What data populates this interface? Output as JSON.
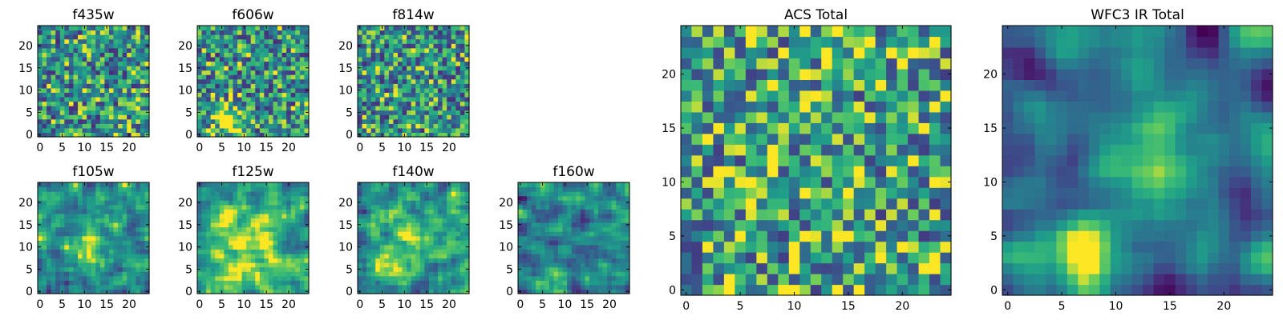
{
  "chart_data": [
    {
      "type": "heatmap",
      "title": "f435w",
      "seed": 11,
      "smooth": 0,
      "bias": 0.0,
      "hotspot": null,
      "xticks": [
        0,
        5,
        10,
        15,
        20
      ],
      "yticks": [
        0,
        5,
        10,
        15,
        20
      ],
      "xlim": [
        -0.5,
        24.5
      ],
      "ylim": [
        -0.5,
        24.5
      ],
      "colormap": "viridis"
    },
    {
      "type": "heatmap",
      "title": "f606w",
      "seed": 23,
      "smooth": 0,
      "bias": 0.0,
      "hotspot": [
        7,
        3,
        0.55,
        2.5
      ],
      "xticks": [
        0,
        5,
        10,
        15,
        20
      ],
      "yticks": [
        0,
        5,
        10,
        15,
        20
      ],
      "xlim": [
        -0.5,
        24.5
      ],
      "ylim": [
        -0.5,
        24.5
      ],
      "colormap": "viridis"
    },
    {
      "type": "heatmap",
      "title": "f814w",
      "seed": 37,
      "smooth": 0,
      "bias": 0.0,
      "hotspot": null,
      "xticks": [
        0,
        5,
        10,
        15,
        20
      ],
      "yticks": [
        0,
        5,
        10,
        15,
        20
      ],
      "xlim": [
        -0.5,
        24.5
      ],
      "ylim": [
        -0.5,
        24.5
      ],
      "colormap": "viridis"
    },
    {
      "type": "heatmap",
      "title": "f105w",
      "seed": 41,
      "smooth": 1,
      "bias": 0.0,
      "hotspot": [
        11,
        11,
        0.35,
        4
      ],
      "xticks": [
        0,
        5,
        10,
        15,
        20
      ],
      "yticks": [
        0,
        5,
        10,
        15,
        20
      ],
      "xlim": [
        -0.5,
        24.5
      ],
      "ylim": [
        -0.5,
        24.5
      ],
      "colormap": "viridis"
    },
    {
      "type": "heatmap",
      "title": "f125w",
      "seed": 53,
      "smooth": 1,
      "bias": 0.08,
      "hotspot": [
        10,
        12,
        0.25,
        5
      ],
      "xticks": [
        0,
        5,
        10,
        15,
        20
      ],
      "yticks": [
        0,
        5,
        10,
        15,
        20
      ],
      "xlim": [
        -0.5,
        24.5
      ],
      "ylim": [
        -0.5,
        24.5
      ],
      "colormap": "viridis"
    },
    {
      "type": "heatmap",
      "title": "f140w",
      "seed": 67,
      "smooth": 1,
      "bias": 0.0,
      "hotspot": [
        12,
        10,
        0.25,
        5
      ],
      "xticks": [
        0,
        5,
        10,
        15,
        20
      ],
      "yticks": [
        0,
        5,
        10,
        15,
        20
      ],
      "xlim": [
        -0.5,
        24.5
      ],
      "ylim": [
        -0.5,
        24.5
      ],
      "colormap": "viridis"
    },
    {
      "type": "heatmap",
      "title": "f160w",
      "seed": 79,
      "smooth": 1,
      "bias": -0.1,
      "hotspot": [
        6,
        2,
        0.45,
        2
      ],
      "xticks": [
        0,
        5,
        10,
        15,
        20
      ],
      "yticks": [
        0,
        5,
        10,
        15,
        20
      ],
      "xlim": [
        -0.5,
        24.5
      ],
      "ylim": [
        -0.5,
        24.5
      ],
      "colormap": "viridis"
    },
    {
      "type": "heatmap",
      "title": "ACS Total",
      "seed": 97,
      "smooth": 0,
      "bias": 0.05,
      "hotspot": null,
      "xticks": [
        0,
        5,
        10,
        15,
        20
      ],
      "yticks": [
        0,
        5,
        10,
        15,
        20
      ],
      "xlim": [
        -0.5,
        24.5
      ],
      "ylim": [
        -0.5,
        24.5
      ],
      "colormap": "viridis"
    },
    {
      "type": "heatmap",
      "title": "WFC3 IR Total",
      "seed": 113,
      "smooth": 2,
      "bias": -0.15,
      "hotspot": [
        7,
        3,
        0.65,
        2.5
      ],
      "hotspot2": [
        14,
        12,
        0.35,
        3.5
      ],
      "xticks": [
        0,
        5,
        10,
        15,
        20
      ],
      "yticks": [
        0,
        5,
        10,
        15,
        20
      ],
      "xlim": [
        -0.5,
        24.5
      ],
      "ylim": [
        -0.5,
        24.5
      ],
      "colormap": "viridis"
    }
  ]
}
